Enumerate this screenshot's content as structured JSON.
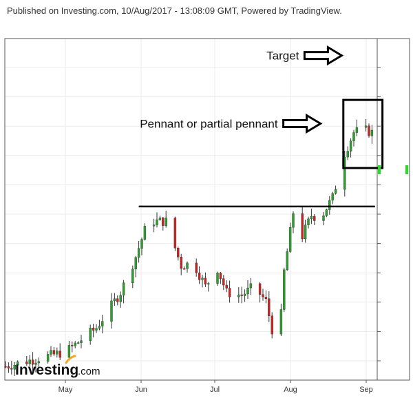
{
  "header": {
    "published_text": "Published on Investing.com, 10/Aug/2017 - 13:08:09 GMT, Powered by TradingView."
  },
  "logo": {
    "brand": "Investing",
    "suffix": ".com",
    "accent_color": "#f5a623"
  },
  "annotations": {
    "target_label": "Target",
    "pennant_label": "Pennant or partial pennant"
  },
  "colors": {
    "up_candle": "#2ca02c",
    "down_candle": "#cc2222",
    "wick": "#333333",
    "grid": "#ebebeb",
    "frame": "#555555",
    "price_marker": "#22dd22"
  },
  "chart_data": {
    "type": "candlestick",
    "title": "",
    "xlabel": "",
    "ylabel": "",
    "x_tick_labels": [
      "May",
      "Jun",
      "Jul",
      "Aug",
      "Sep"
    ],
    "y_tick_labels_visible": false,
    "ylim": [
      0,
      100
    ],
    "grid": true,
    "series": [
      {
        "start": 3,
        "trend": [
          [
            0,
            3
          ],
          [
            20,
            8
          ],
          [
            30,
            16
          ],
          [
            38,
            28
          ],
          [
            43,
            40
          ],
          [
            47,
            52
          ],
          [
            53,
            52
          ],
          [
            58,
            37
          ],
          [
            62,
            38
          ],
          [
            66,
            30
          ],
          [
            70,
            36
          ],
          [
            73,
            28
          ],
          [
            78,
            27
          ],
          [
            82,
            30
          ],
          [
            86,
            25
          ],
          [
            90,
            6
          ],
          [
            92,
            35
          ],
          [
            95,
            55
          ],
          [
            98,
            47
          ],
          [
            101,
            54
          ],
          [
            104,
            53
          ],
          [
            108,
            60
          ],
          [
            112,
            75
          ],
          [
            115,
            82
          ],
          [
            118,
            83
          ],
          [
            121,
            82
          ]
        ]
      }
    ],
    "resistance_line": {
      "x_start": 44,
      "x_end": 122,
      "y": 57
    },
    "pennant_box": {
      "x_start": 112,
      "x_end": 124,
      "y_low": 70,
      "y_high": 93
    },
    "target_arrow": {
      "x": 111,
      "y": 108
    },
    "pennant_arrow": {
      "x": 104,
      "y": 85
    }
  }
}
